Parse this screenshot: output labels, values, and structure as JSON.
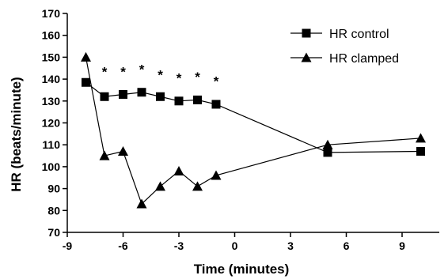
{
  "chart_data": {
    "type": "line",
    "xlabel": "Time (minutes)",
    "ylabel": "HR (beats/minute)",
    "xlim": [
      -9,
      11
    ],
    "ylim": [
      70,
      170
    ],
    "xticks": [
      -9,
      -6,
      -3,
      0,
      3,
      6,
      9
    ],
    "yticks": [
      70,
      80,
      90,
      100,
      110,
      120,
      130,
      140,
      150,
      160,
      170
    ],
    "grid": false,
    "legend_position": "top-right",
    "series": [
      {
        "name": "HR control",
        "marker": "square",
        "color": "#000000",
        "x": [
          -8,
          -7,
          -6,
          -5,
          -4,
          -3,
          -2,
          -1,
          5,
          10
        ],
        "y": [
          138.5,
          132,
          133,
          134,
          132,
          130,
          130.5,
          128.5,
          106.5,
          107
        ]
      },
      {
        "name": "HR clamped",
        "marker": "triangle",
        "color": "#000000",
        "x": [
          -8,
          -7,
          -6,
          -5,
          -4,
          -3,
          -2,
          -1,
          5,
          10
        ],
        "y": [
          150,
          105,
          107,
          83,
          91,
          98,
          91,
          96,
          110,
          113
        ]
      }
    ],
    "annotations": [
      {
        "text": "*",
        "x": -7,
        "y": 145
      },
      {
        "text": "*",
        "x": -6,
        "y": 145
      },
      {
        "text": "*",
        "x": -5,
        "y": 146
      },
      {
        "text": "*",
        "x": -4,
        "y": 143.5
      },
      {
        "text": "*",
        "x": -3,
        "y": 142
      },
      {
        "text": "*",
        "x": -2,
        "y": 142.5
      },
      {
        "text": "*",
        "x": -1,
        "y": 140.5
      }
    ]
  }
}
